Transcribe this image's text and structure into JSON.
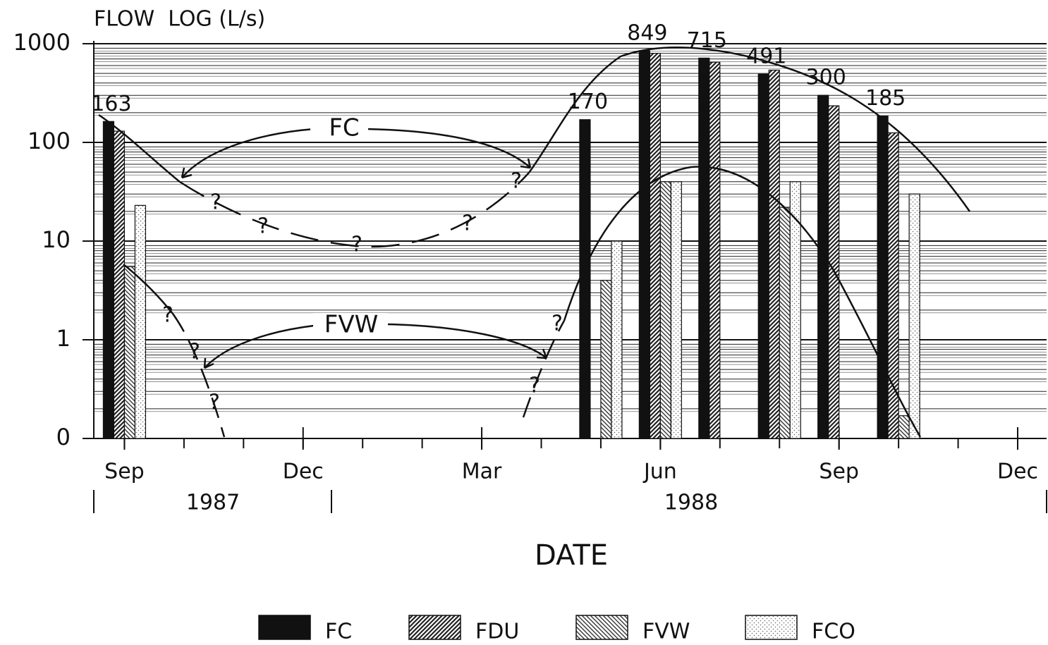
{
  "chart_data": {
    "type": "bar",
    "title": "FLOW  LOG (L/s)",
    "xlabel": "DATE",
    "x": [
      "1987-09",
      "1988-05",
      "1988-06",
      "1988-07",
      "1988-08",
      "1988-09",
      "1988-10"
    ],
    "xlim": [
      "1987-08",
      "1988-12"
    ],
    "xticks": [
      {
        "value": "1987-09",
        "label": "Sep"
      },
      {
        "value": "1987-12",
        "label": "Dec"
      },
      {
        "value": "1988-03",
        "label": "Mar"
      },
      {
        "value": "1988-06",
        "label": "Jun"
      },
      {
        "value": "1988-09",
        "label": "Sep"
      },
      {
        "value": "1988-12",
        "label": "Dec"
      }
    ],
    "years": [
      "1987",
      "1988"
    ],
    "log_scale": true,
    "ylim": [
      0.1,
      1000
    ],
    "yticks": [
      {
        "value": 0.1,
        "label": "0"
      },
      1,
      10,
      100,
      1000
    ],
    "grid": true,
    "legend": "bottom",
    "series": [
      {
        "name": "FC",
        "color": "#111111",
        "pattern": "solid",
        "values": [
          163,
          170,
          849,
          715,
          491,
          300,
          185
        ],
        "show_labels": true
      },
      {
        "name": "FDU",
        "color": "#222222",
        "pattern": "dense-hatch",
        "values": [
          130,
          null,
          800,
          650,
          540,
          235,
          125
        ]
      },
      {
        "name": "FVW",
        "color": "#333333",
        "pattern": "hatch",
        "values": [
          5.5,
          4,
          40,
          null,
          22,
          null,
          0.17
        ]
      },
      {
        "name": "FCO",
        "color": "#666666",
        "pattern": "dots",
        "values": [
          23,
          10,
          40,
          null,
          40,
          null,
          30
        ]
      }
    ],
    "annotations": [
      "FC",
      "FVW"
    ],
    "uncertain_marker": "?"
  }
}
